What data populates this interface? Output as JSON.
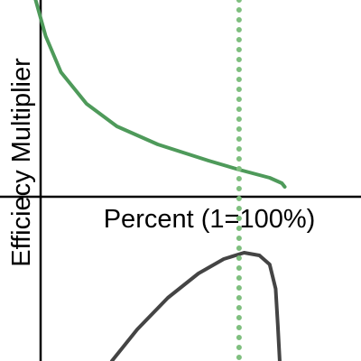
{
  "chart_data": {
    "type": "line",
    "xlabel": "Percent (1=100%)",
    "ylabel": "Efficiecy Multiplier",
    "xlim": [
      0,
      1.51
    ],
    "ylim": [
      -1.82,
      2.18
    ],
    "vline": {
      "x": 1,
      "color": "#7fbf7f"
    },
    "series": [
      {
        "color": "#4e9a5a",
        "x": [
          0.149,
          0.191,
          0.255,
          0.362,
          0.489,
          0.66,
          0.872,
          1.0,
          1.128,
          1.179,
          1.191
        ],
        "values": [
          2.18,
          1.78,
          1.38,
          1.03,
          0.78,
          0.58,
          0.4,
          0.3,
          0.21,
          0.15,
          0.11
        ]
      },
      {
        "color": "#444444",
        "x": [
          0.468,
          0.574,
          0.702,
          0.83,
          0.936,
          1.021,
          1.085,
          1.128,
          1.153,
          1.162,
          1.17
        ],
        "values": [
          -1.82,
          -1.47,
          -1.12,
          -0.85,
          -0.69,
          -0.62,
          -0.65,
          -0.75,
          -1.02,
          -1.42,
          -1.82
        ]
      }
    ]
  }
}
